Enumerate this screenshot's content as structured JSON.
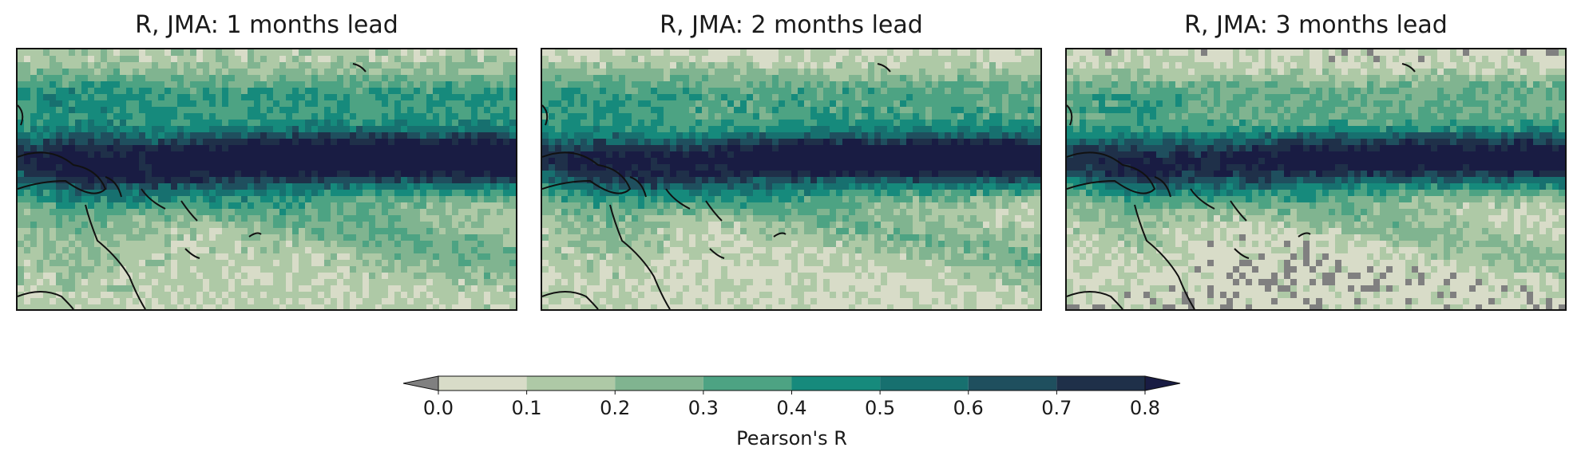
{
  "chart_data": {
    "type": "heatmap",
    "variable": "R",
    "season": "JMA",
    "panels": [
      {
        "title": "R, JMA: 1 months lead",
        "lead_months": 1
      },
      {
        "title": "R, JMA: 2 months lead",
        "lead_months": 2
      },
      {
        "title": "R, JMA: 3 months lead",
        "lead_months": 3
      }
    ],
    "colorbar": {
      "label": "Pearson's R",
      "levels": [
        0.0,
        0.1,
        0.2,
        0.3,
        0.4,
        0.5,
        0.6,
        0.7,
        0.8
      ],
      "tick_labels": [
        "0.0",
        "0.1",
        "0.2",
        "0.3",
        "0.4",
        "0.5",
        "0.6",
        "0.7",
        "0.8"
      ],
      "extend": "both",
      "under_color": "#808080",
      "colors": [
        "#d8dcc8",
        "#aec9a6",
        "#80b490",
        "#4da383",
        "#168a7c",
        "#17706f",
        "#1f4f5e",
        "#1f3049"
      ],
      "over_color": "#191c43"
    }
  }
}
